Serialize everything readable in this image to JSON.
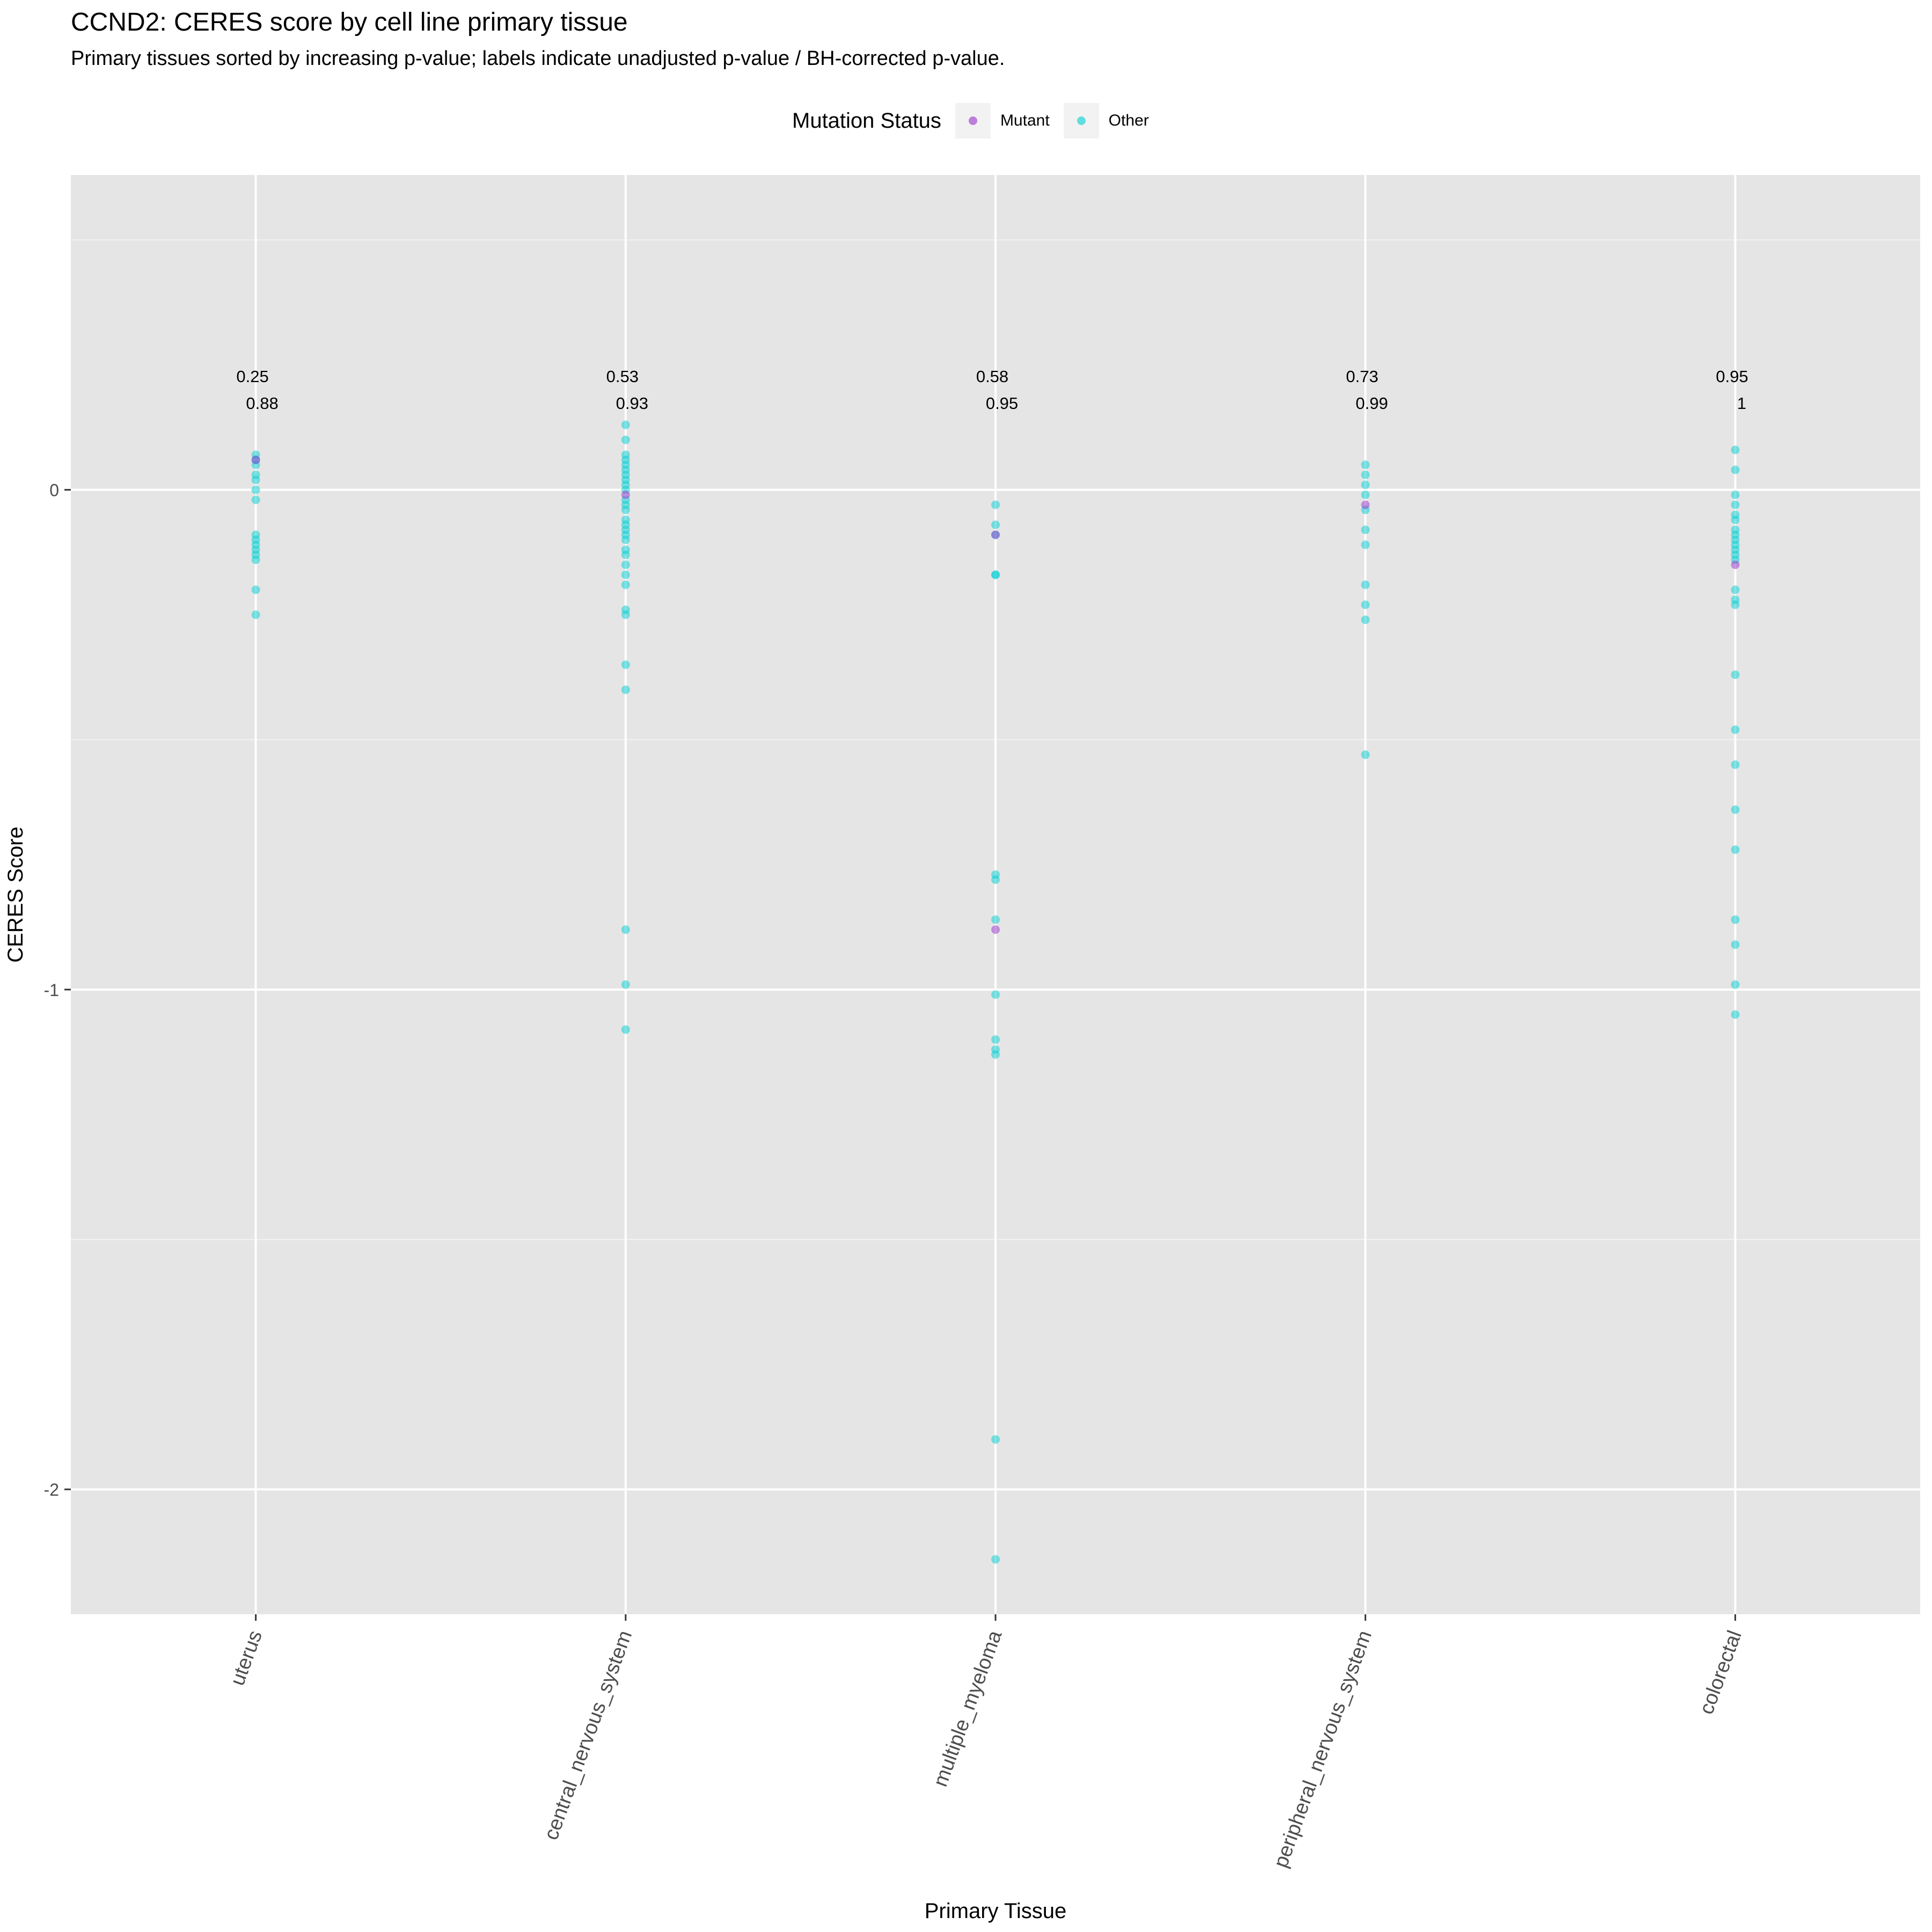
{
  "chart_data": {
    "type": "scatter",
    "title": "CCND2: CERES score by cell line primary tissue",
    "subtitle": "Primary tissues sorted by increasing p-value; labels indicate unadjusted p-value / BH-corrected p-value.",
    "xlabel": "Primary Tissue",
    "ylabel": "CERES Score",
    "ylim": [
      -2.25,
      0.63
    ],
    "y_ticks": [
      0,
      -1,
      -2
    ],
    "y_tick_labels": [
      "0",
      "-1",
      "-2"
    ],
    "grid": true,
    "legend": {
      "title": "Mutation Status",
      "placement": "top",
      "entries": [
        {
          "label": "Mutant",
          "color": "#9932CC"
        },
        {
          "label": "Other",
          "color": "#00CED1"
        }
      ]
    },
    "categories": [
      "uterus",
      "central_nervous_system",
      "multiple_myeloma",
      "peripheral_nervous_system",
      "colorectal"
    ],
    "p_values": [
      "0.25",
      "0.53",
      "0.58",
      "0.73",
      "0.95"
    ],
    "bh_p_values": [
      "0.88",
      "0.93",
      "0.95",
      "0.99",
      "1"
    ],
    "series": [
      {
        "name": "Other",
        "color": "#00CED1",
        "points": [
          [
            "uterus",
            0.07
          ],
          [
            "uterus",
            0.06
          ],
          [
            "uterus",
            0.05
          ],
          [
            "uterus",
            0.03
          ],
          [
            "uterus",
            0.02
          ],
          [
            "uterus",
            0.0
          ],
          [
            "uterus",
            -0.02
          ],
          [
            "uterus",
            -0.09
          ],
          [
            "uterus",
            -0.1
          ],
          [
            "uterus",
            -0.11
          ],
          [
            "uterus",
            -0.12
          ],
          [
            "uterus",
            -0.13
          ],
          [
            "uterus",
            -0.14
          ],
          [
            "uterus",
            -0.2
          ],
          [
            "uterus",
            -0.25
          ],
          [
            "central_nervous_system",
            0.13
          ],
          [
            "central_nervous_system",
            0.1
          ],
          [
            "central_nervous_system",
            0.07
          ],
          [
            "central_nervous_system",
            0.06
          ],
          [
            "central_nervous_system",
            0.05
          ],
          [
            "central_nervous_system",
            0.04
          ],
          [
            "central_nervous_system",
            0.03
          ],
          [
            "central_nervous_system",
            0.02
          ],
          [
            "central_nervous_system",
            0.01
          ],
          [
            "central_nervous_system",
            0.0
          ],
          [
            "central_nervous_system",
            -0.02
          ],
          [
            "central_nervous_system",
            -0.03
          ],
          [
            "central_nervous_system",
            -0.04
          ],
          [
            "central_nervous_system",
            -0.06
          ],
          [
            "central_nervous_system",
            -0.07
          ],
          [
            "central_nervous_system",
            -0.08
          ],
          [
            "central_nervous_system",
            -0.09
          ],
          [
            "central_nervous_system",
            -0.1
          ],
          [
            "central_nervous_system",
            -0.12
          ],
          [
            "central_nervous_system",
            -0.13
          ],
          [
            "central_nervous_system",
            -0.15
          ],
          [
            "central_nervous_system",
            -0.17
          ],
          [
            "central_nervous_system",
            -0.19
          ],
          [
            "central_nervous_system",
            -0.24
          ],
          [
            "central_nervous_system",
            -0.25
          ],
          [
            "central_nervous_system",
            -0.35
          ],
          [
            "central_nervous_system",
            -0.4
          ],
          [
            "central_nervous_system",
            -0.88
          ],
          [
            "central_nervous_system",
            -0.99
          ],
          [
            "central_nervous_system",
            -1.08
          ],
          [
            "multiple_myeloma",
            -0.03
          ],
          [
            "multiple_myeloma",
            -0.07
          ],
          [
            "multiple_myeloma",
            -0.09
          ],
          [
            "multiple_myeloma",
            -0.17
          ],
          [
            "multiple_myeloma",
            -0.17
          ],
          [
            "multiple_myeloma",
            -0.77
          ],
          [
            "multiple_myeloma",
            -0.78
          ],
          [
            "multiple_myeloma",
            -0.86
          ],
          [
            "multiple_myeloma",
            -1.01
          ],
          [
            "multiple_myeloma",
            -1.1
          ],
          [
            "multiple_myeloma",
            -1.12
          ],
          [
            "multiple_myeloma",
            -1.13
          ],
          [
            "multiple_myeloma",
            -1.9
          ],
          [
            "multiple_myeloma",
            -2.14
          ],
          [
            "peripheral_nervous_system",
            0.05
          ],
          [
            "peripheral_nervous_system",
            0.03
          ],
          [
            "peripheral_nervous_system",
            0.01
          ],
          [
            "peripheral_nervous_system",
            -0.01
          ],
          [
            "peripheral_nervous_system",
            -0.04
          ],
          [
            "peripheral_nervous_system",
            -0.08
          ],
          [
            "peripheral_nervous_system",
            -0.11
          ],
          [
            "peripheral_nervous_system",
            -0.19
          ],
          [
            "peripheral_nervous_system",
            -0.23
          ],
          [
            "peripheral_nervous_system",
            -0.26
          ],
          [
            "peripheral_nervous_system",
            -0.53
          ],
          [
            "colorectal",
            0.08
          ],
          [
            "colorectal",
            0.04
          ],
          [
            "colorectal",
            -0.01
          ],
          [
            "colorectal",
            -0.03
          ],
          [
            "colorectal",
            -0.05
          ],
          [
            "colorectal",
            -0.06
          ],
          [
            "colorectal",
            -0.08
          ],
          [
            "colorectal",
            -0.09
          ],
          [
            "colorectal",
            -0.1
          ],
          [
            "colorectal",
            -0.11
          ],
          [
            "colorectal",
            -0.12
          ],
          [
            "colorectal",
            -0.13
          ],
          [
            "colorectal",
            -0.14
          ],
          [
            "colorectal",
            -0.2
          ],
          [
            "colorectal",
            -0.22
          ],
          [
            "colorectal",
            -0.23
          ],
          [
            "colorectal",
            -0.37
          ],
          [
            "colorectal",
            -0.48
          ],
          [
            "colorectal",
            -0.55
          ],
          [
            "colorectal",
            -0.64
          ],
          [
            "colorectal",
            -0.72
          ],
          [
            "colorectal",
            -0.86
          ],
          [
            "colorectal",
            -0.91
          ],
          [
            "colorectal",
            -0.99
          ],
          [
            "colorectal",
            -1.05
          ]
        ]
      },
      {
        "name": "Mutant",
        "color": "#9932CC",
        "points": [
          [
            "uterus",
            0.06
          ],
          [
            "central_nervous_system",
            -0.01
          ],
          [
            "multiple_myeloma",
            -0.09
          ],
          [
            "multiple_myeloma",
            -0.88
          ],
          [
            "peripheral_nervous_system",
            -0.03
          ],
          [
            "colorectal",
            -0.15
          ]
        ]
      }
    ]
  }
}
